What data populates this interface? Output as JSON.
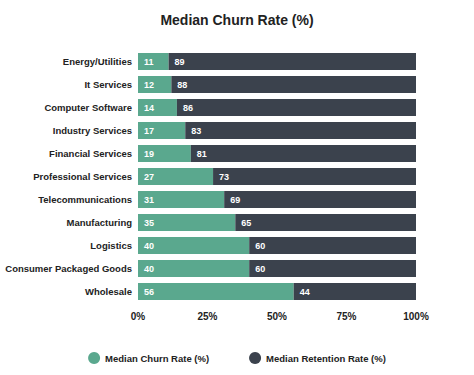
{
  "chart_data": {
    "type": "bar",
    "title": "Median Churn Rate (%)",
    "orientation": "horizontal",
    "stacked": true,
    "data_labels": true,
    "grid": false,
    "legend": "bottom",
    "categories": [
      "Energy/Utilities",
      "It Services",
      "Computer Software",
      "Industry Services",
      "Financial Services",
      "Professional Services",
      "Telecommunications",
      "Manufacturing",
      "Logistics",
      "Consumer Packaged Goods",
      "Wholesale"
    ],
    "series": [
      {
        "name": "Median Churn Rate (%)",
        "color": "#5aa88e",
        "values": [
          11,
          12,
          14,
          17,
          19,
          27,
          31,
          35,
          40,
          40,
          56
        ]
      },
      {
        "name": "Median Retention Rate (%)",
        "color": "#3b424d",
        "values": [
          89,
          88,
          86,
          83,
          81,
          73,
          69,
          65,
          60,
          60,
          44
        ]
      }
    ],
    "xlim": [
      0,
      100
    ],
    "xticks": [
      {
        "value": 0,
        "label": "0%"
      },
      {
        "value": 25,
        "label": "25%"
      },
      {
        "value": 50,
        "label": "50%"
      },
      {
        "value": 75,
        "label": "75%"
      },
      {
        "value": 100,
        "label": "100%"
      }
    ]
  }
}
